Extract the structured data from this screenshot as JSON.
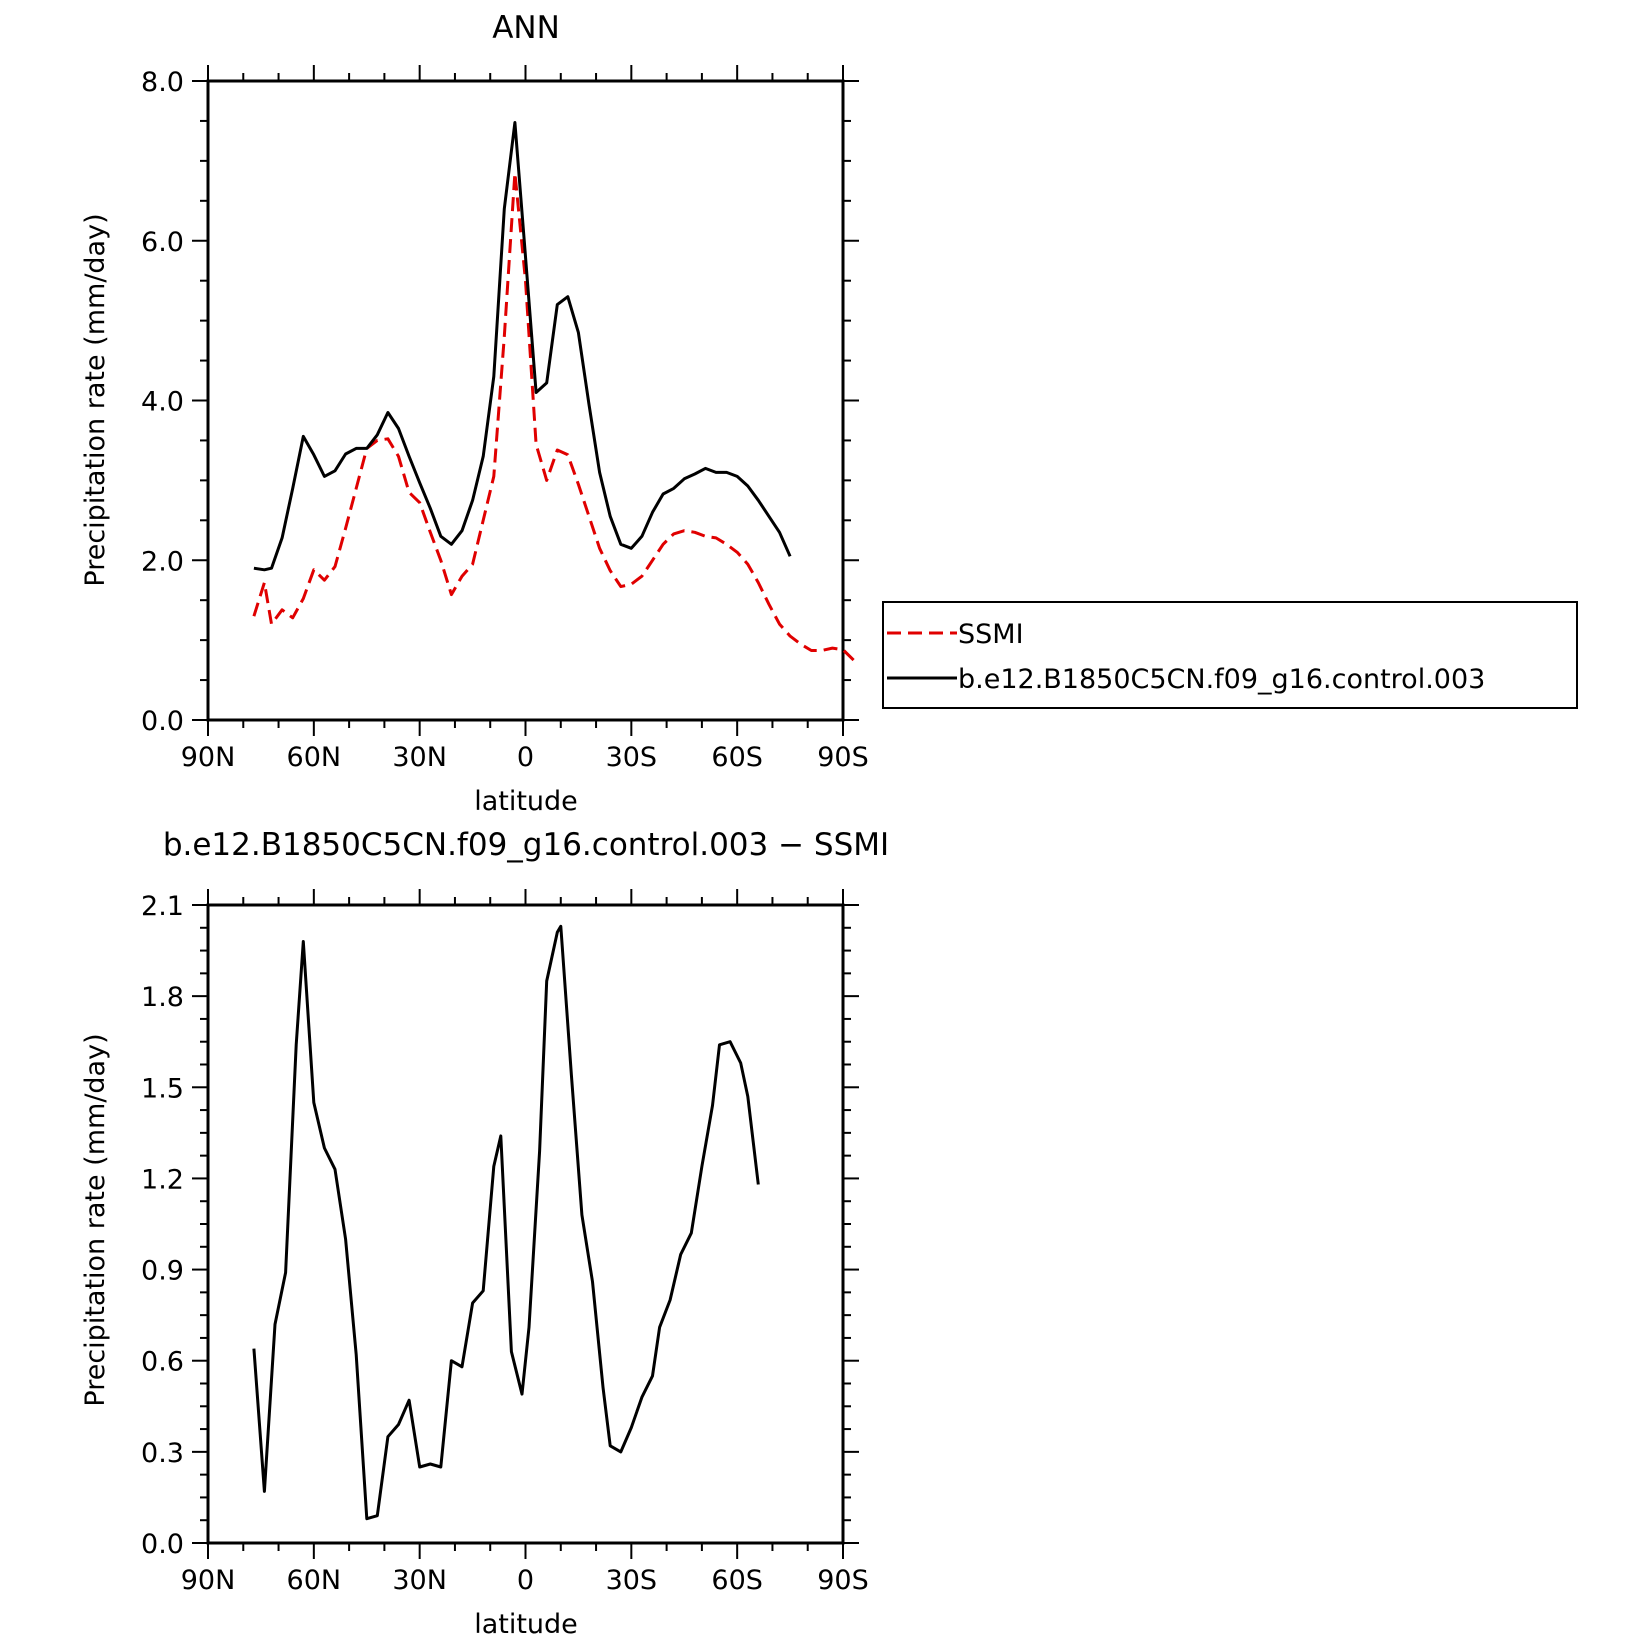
{
  "chart_data": [
    {
      "type": "line",
      "title": "ANN",
      "xlabel": "latitude",
      "ylabel": "Precipitation rate (mm/day)",
      "xlim": [
        90,
        -90
      ],
      "ylim": [
        0,
        8
      ],
      "x_ticks": [
        90,
        60,
        30,
        0,
        -30,
        -60,
        -90
      ],
      "x_tick_labels": [
        "90N",
        "60N",
        "30N",
        "0",
        "30S",
        "60S",
        "90S"
      ],
      "y_ticks": [
        0,
        2,
        4,
        6,
        8
      ],
      "y_tick_labels": [
        "0.0",
        "2.0",
        "4.0",
        "6.0",
        "8.0"
      ],
      "legend_position": "right",
      "series": [
        {
          "name": "SSMI",
          "color": "#e00000",
          "dash": true,
          "points": [
            [
              77,
              1.3
            ],
            [
              74,
              1.72
            ],
            [
              72,
              1.2
            ],
            [
              69,
              1.38
            ],
            [
              66,
              1.28
            ],
            [
              63,
              1.52
            ],
            [
              60,
              1.88
            ],
            [
              57,
              1.75
            ],
            [
              54,
              1.92
            ],
            [
              51,
              2.4
            ],
            [
              48,
              2.9
            ],
            [
              45,
              3.4
            ],
            [
              42,
              3.5
            ],
            [
              39,
              3.52
            ],
            [
              36,
              3.3
            ],
            [
              33,
              2.85
            ],
            [
              30,
              2.72
            ],
            [
              27,
              2.35
            ],
            [
              24,
              2.0
            ],
            [
              21,
              1.57
            ],
            [
              18,
              1.8
            ],
            [
              15,
              1.95
            ],
            [
              12,
              2.5
            ],
            [
              9,
              3.05
            ],
            [
              6,
              4.8
            ],
            [
              3,
              6.85
            ],
            [
              0,
              5.5
            ],
            [
              -3,
              3.45
            ],
            [
              -6,
              3.0
            ],
            [
              -9,
              3.38
            ],
            [
              -12,
              3.32
            ],
            [
              -15,
              2.95
            ],
            [
              -18,
              2.55
            ],
            [
              -21,
              2.15
            ],
            [
              -24,
              1.87
            ],
            [
              -27,
              1.67
            ],
            [
              -30,
              1.7
            ],
            [
              -33,
              1.8
            ],
            [
              -36,
              2.0
            ],
            [
              -39,
              2.2
            ],
            [
              -42,
              2.33
            ],
            [
              -45,
              2.37
            ],
            [
              -48,
              2.35
            ],
            [
              -51,
              2.3
            ],
            [
              -54,
              2.28
            ],
            [
              -57,
              2.2
            ],
            [
              -60,
              2.1
            ],
            [
              -63,
              1.95
            ],
            [
              -66,
              1.72
            ],
            [
              -69,
              1.45
            ],
            [
              -72,
              1.2
            ],
            [
              -75,
              1.05
            ],
            [
              -78,
              0.95
            ],
            [
              -81,
              0.87
            ],
            [
              -84,
              0.87
            ],
            [
              -87,
              0.9
            ],
            [
              -90,
              0.88
            ],
            [
              -93,
              0.75
            ]
          ]
        },
        {
          "name": "b.e12.B1850C5CN.f09_g16.control.003",
          "color": "#000000",
          "dash": false,
          "points": [
            [
              77,
              1.9
            ],
            [
              74,
              1.88
            ],
            [
              72,
              1.9
            ],
            [
              69,
              2.28
            ],
            [
              66,
              2.9
            ],
            [
              63,
              3.55
            ],
            [
              60,
              3.32
            ],
            [
              57,
              3.05
            ],
            [
              54,
              3.12
            ],
            [
              51,
              3.33
            ],
            [
              48,
              3.4
            ],
            [
              45,
              3.4
            ],
            [
              42,
              3.57
            ],
            [
              39,
              3.85
            ],
            [
              36,
              3.65
            ],
            [
              33,
              3.3
            ],
            [
              30,
              2.97
            ],
            [
              27,
              2.65
            ],
            [
              24,
              2.3
            ],
            [
              21,
              2.2
            ],
            [
              18,
              2.37
            ],
            [
              15,
              2.75
            ],
            [
              12,
              3.3
            ],
            [
              9,
              4.3
            ],
            [
              6,
              6.4
            ],
            [
              3,
              7.48
            ],
            [
              0,
              5.8
            ],
            [
              -3,
              4.1
            ],
            [
              -6,
              4.22
            ],
            [
              -9,
              5.2
            ],
            [
              -12,
              5.3
            ],
            [
              -15,
              4.85
            ],
            [
              -18,
              3.95
            ],
            [
              -21,
              3.1
            ],
            [
              -24,
              2.55
            ],
            [
              -27,
              2.2
            ],
            [
              -30,
              2.15
            ],
            [
              -33,
              2.3
            ],
            [
              -36,
              2.6
            ],
            [
              -39,
              2.83
            ],
            [
              -42,
              2.9
            ],
            [
              -45,
              3.02
            ],
            [
              -48,
              3.08
            ],
            [
              -51,
              3.15
            ],
            [
              -54,
              3.1
            ],
            [
              -57,
              3.1
            ],
            [
              -60,
              3.05
            ],
            [
              -63,
              2.93
            ],
            [
              -66,
              2.75
            ],
            [
              -69,
              2.55
            ],
            [
              -72,
              2.35
            ],
            [
              -75,
              2.05
            ]
          ]
        }
      ]
    },
    {
      "type": "line",
      "title": "b.e12.B1850C5CN.f09_g16.control.003 − SSMI",
      "xlabel": "latitude",
      "ylabel": "Precipitation rate (mm/day)",
      "xlim": [
        90,
        -90
      ],
      "ylim": [
        0,
        2.1
      ],
      "x_ticks": [
        90,
        60,
        30,
        0,
        -30,
        -60,
        -90
      ],
      "x_tick_labels": [
        "90N",
        "60N",
        "30N",
        "0",
        "30S",
        "60S",
        "90S"
      ],
      "y_ticks": [
        0,
        0.3,
        0.6,
        0.9,
        1.2,
        1.5,
        1.8,
        2.1
      ],
      "y_tick_labels": [
        "0.0",
        "0.3",
        "0.6",
        "0.9",
        "1.2",
        "1.5",
        "1.8",
        "2.1"
      ],
      "series": [
        {
          "color": "#000000",
          "dash": false,
          "points": [
            [
              77,
              0.64
            ],
            [
              74,
              0.17
            ],
            [
              71,
              0.72
            ],
            [
              68,
              0.89
            ],
            [
              65,
              1.64
            ],
            [
              63,
              1.98
            ],
            [
              60,
              1.45
            ],
            [
              57,
              1.3
            ],
            [
              54,
              1.23
            ],
            [
              51,
              1.0
            ],
            [
              48,
              0.62
            ],
            [
              45,
              0.08
            ],
            [
              42,
              0.09
            ],
            [
              39,
              0.35
            ],
            [
              36,
              0.39
            ],
            [
              33,
              0.47
            ],
            [
              30,
              0.25
            ],
            [
              27,
              0.26
            ],
            [
              24,
              0.25
            ],
            [
              21,
              0.6
            ],
            [
              18,
              0.58
            ],
            [
              15,
              0.79
            ],
            [
              12,
              0.83
            ],
            [
              9,
              1.24
            ],
            [
              7,
              1.34
            ],
            [
              4,
              0.63
            ],
            [
              1,
              0.49
            ],
            [
              -1,
              0.71
            ],
            [
              -4,
              1.29
            ],
            [
              -6,
              1.85
            ],
            [
              -9,
              2.01
            ],
            [
              -10,
              2.03
            ],
            [
              -13,
              1.54
            ],
            [
              -16,
              1.08
            ],
            [
              -19,
              0.86
            ],
            [
              -22,
              0.51
            ],
            [
              -24,
              0.32
            ],
            [
              -27,
              0.3
            ],
            [
              -30,
              0.38
            ],
            [
              -33,
              0.48
            ],
            [
              -36,
              0.55
            ],
            [
              -38,
              0.71
            ],
            [
              -41,
              0.8
            ],
            [
              -44,
              0.95
            ],
            [
              -47,
              1.02
            ],
            [
              -50,
              1.24
            ],
            [
              -53,
              1.44
            ],
            [
              -55,
              1.64
            ],
            [
              -58,
              1.65
            ],
            [
              -61,
              1.58
            ],
            [
              -63,
              1.47
            ],
            [
              -66,
              1.18
            ]
          ]
        }
      ]
    }
  ]
}
